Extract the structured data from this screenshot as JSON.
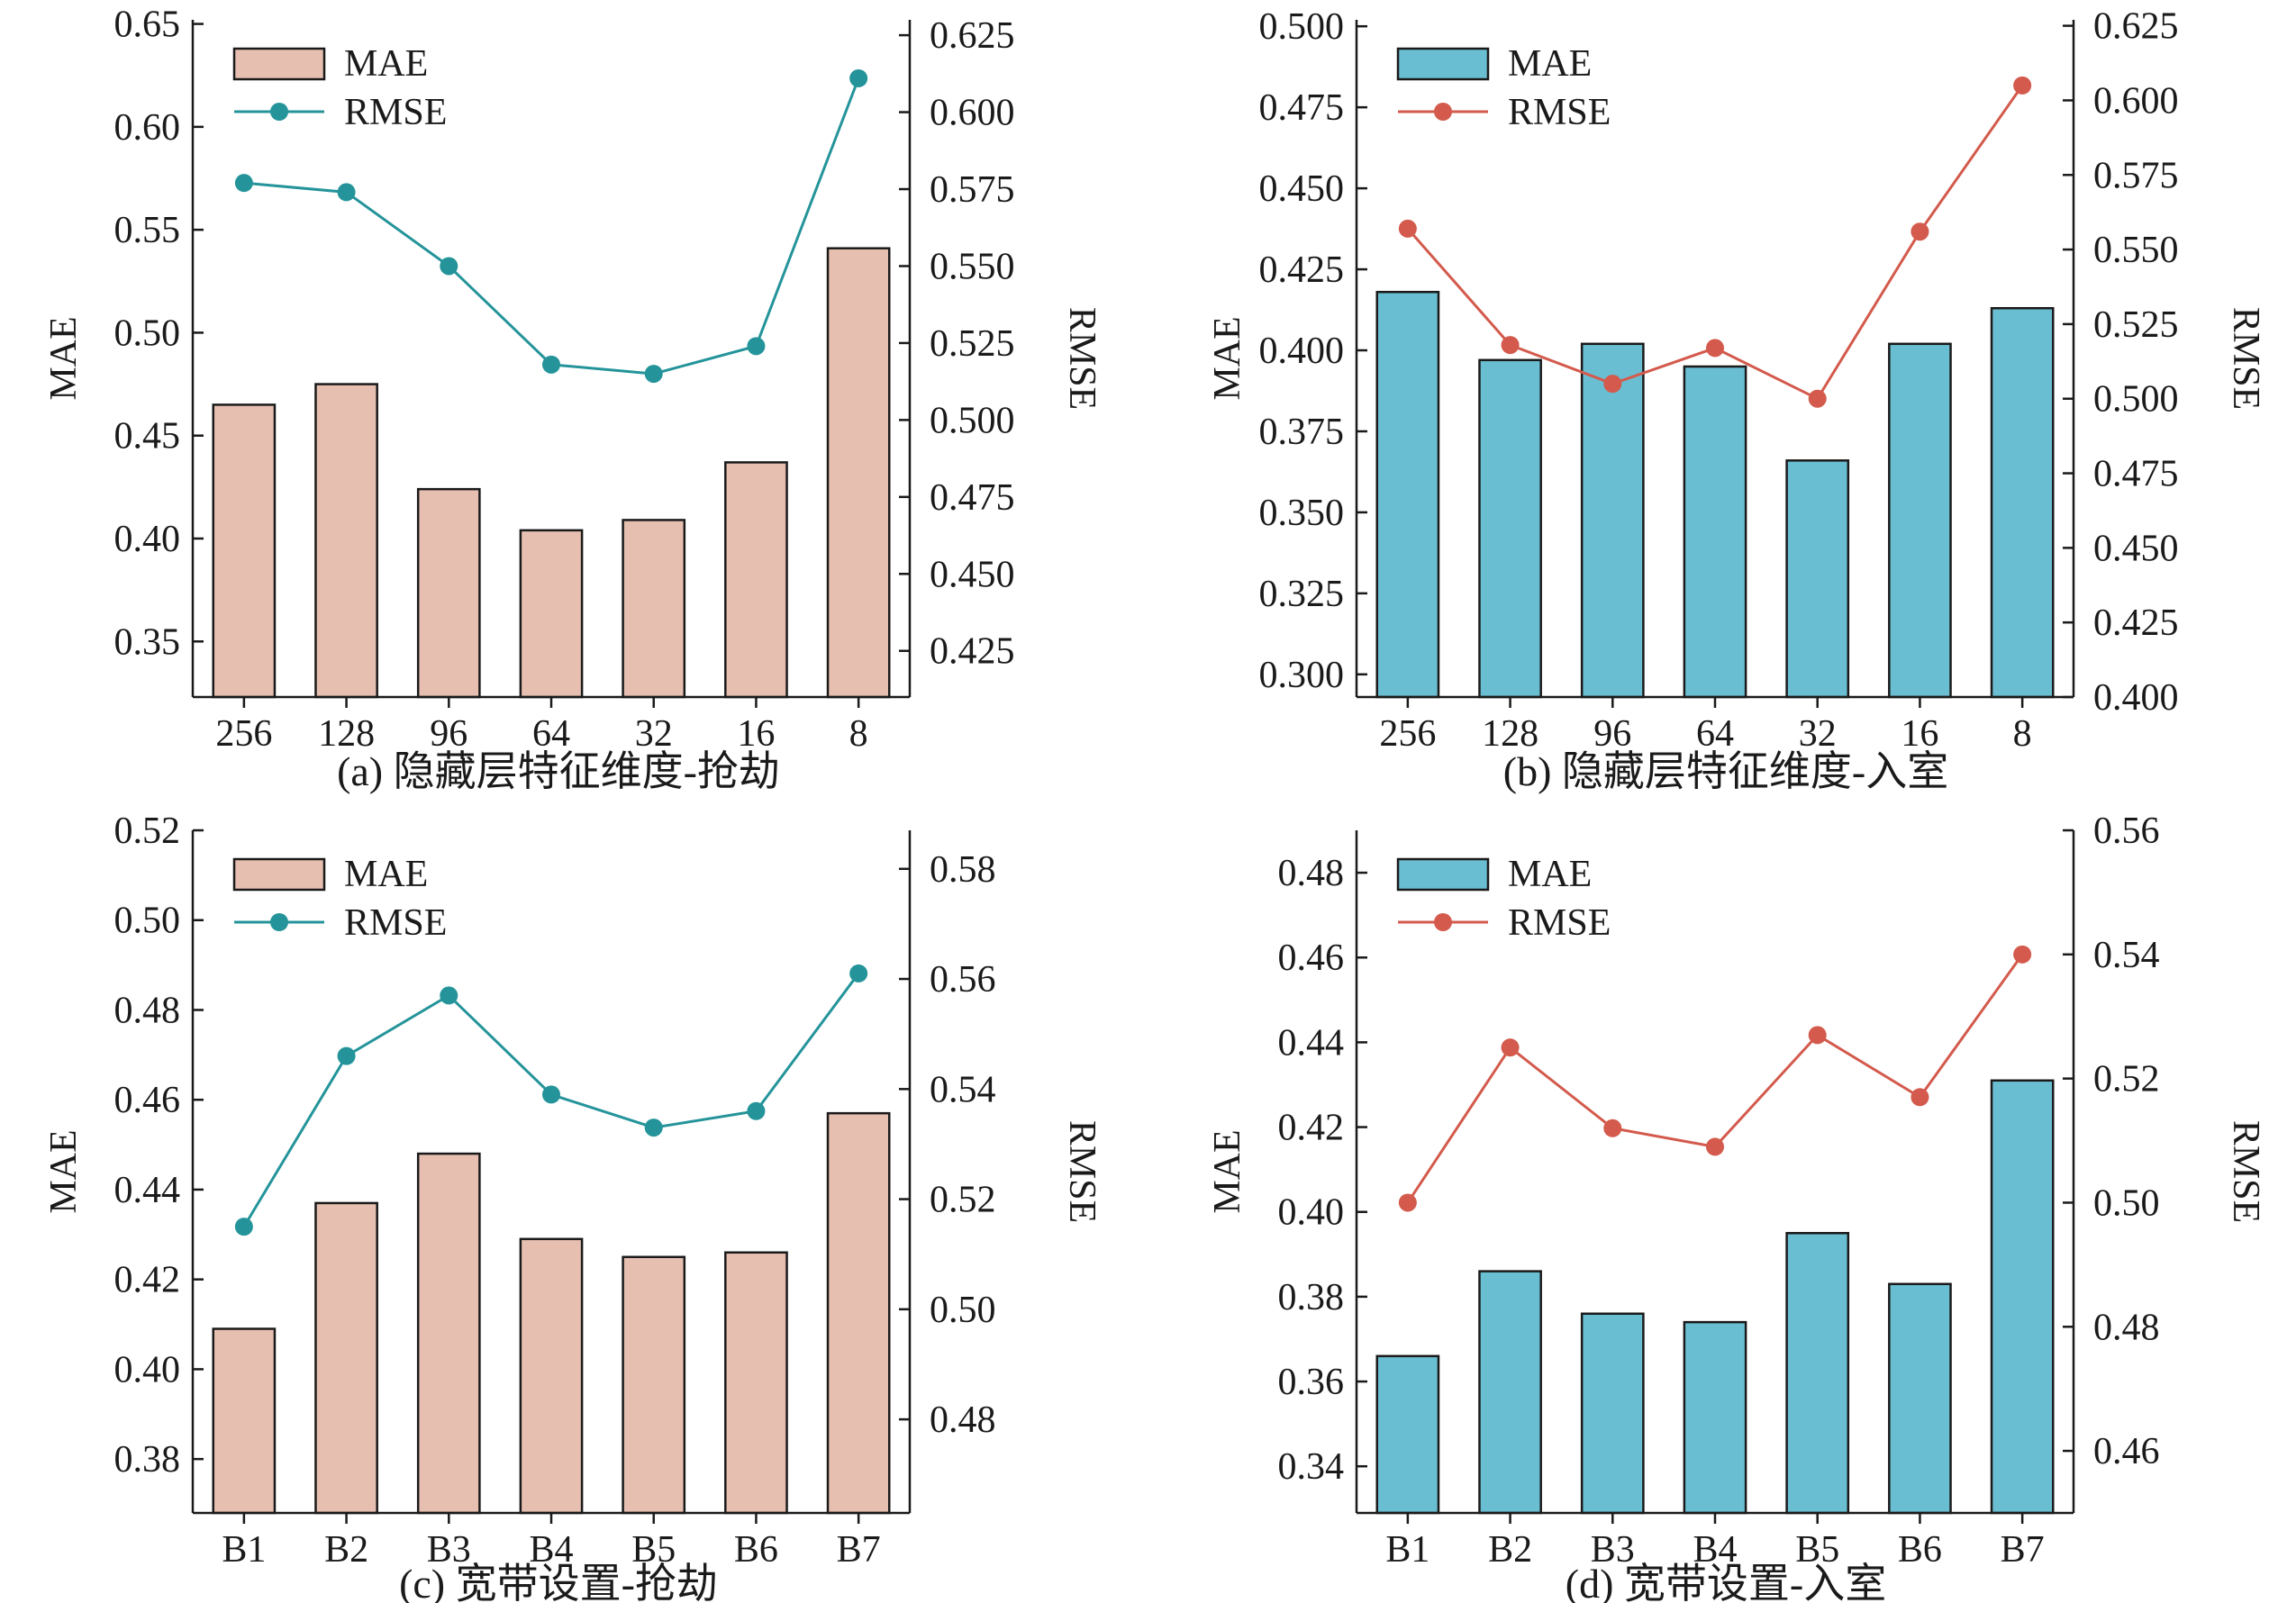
{
  "chart_data": [
    {
      "type": "bar+line",
      "caption": "(a) 隐藏层特征维度-抢劫",
      "categories": [
        "256",
        "128",
        "96",
        "64",
        "32",
        "16",
        "8"
      ],
      "series": [
        {
          "name": "MAE",
          "kind": "bar",
          "axis": "left",
          "values": [
            0.465,
            0.475,
            0.424,
            0.404,
            0.409,
            0.437,
            0.541
          ]
        },
        {
          "name": "RMSE",
          "kind": "line",
          "axis": "right",
          "values": [
            0.577,
            0.574,
            0.55,
            0.518,
            0.515,
            0.524,
            0.611
          ]
        }
      ],
      "ylabel_left": "MAE",
      "ylabel_right": "RMSE",
      "ylim_left": [
        0.323,
        0.652
      ],
      "yticks_left": [
        "0.35",
        "0.40",
        "0.45",
        "0.50",
        "0.55",
        "0.60",
        "0.65"
      ],
      "ylim_right": [
        0.41,
        0.63
      ],
      "yticks_right": [
        "0.425",
        "0.450",
        "0.475",
        "0.500",
        "0.525",
        "0.550",
        "0.575",
        "0.600",
        "0.625"
      ],
      "colors": {
        "bar": "#e6bfb1",
        "line": "#24949a"
      },
      "legend_position": "top-left"
    },
    {
      "type": "bar+line",
      "caption": "(b) 隐藏层特征维度-入室",
      "categories": [
        "256",
        "128",
        "96",
        "64",
        "32",
        "16",
        "8"
      ],
      "series": [
        {
          "name": "MAE",
          "kind": "bar",
          "axis": "left",
          "values": [
            0.418,
            0.397,
            0.402,
            0.395,
            0.366,
            0.402,
            0.413
          ]
        },
        {
          "name": "RMSE",
          "kind": "line",
          "axis": "right",
          "values": [
            0.557,
            0.518,
            0.505,
            0.517,
            0.5,
            0.556,
            0.605
          ]
        }
      ],
      "ylabel_left": "MAE",
      "ylabel_right": "RMSE",
      "ylim_left": [
        0.293,
        0.502
      ],
      "yticks_left": [
        "0.300",
        "0.325",
        "0.350",
        "0.375",
        "0.400",
        "0.425",
        "0.450",
        "0.475",
        "0.500"
      ],
      "ylim_right": [
        0.4,
        0.627
      ],
      "yticks_right": [
        "0.400",
        "0.425",
        "0.450",
        "0.475",
        "0.500",
        "0.525",
        "0.550",
        "0.575",
        "0.600",
        "0.625"
      ],
      "colors": {
        "bar": "#6abed2",
        "line": "#d35a4c"
      },
      "legend_position": "top-left"
    },
    {
      "type": "bar+line",
      "caption": "(c) 宽带设置-抢劫",
      "categories": [
        "B1",
        "B2",
        "B3",
        "B4",
        "B5",
        "B6",
        "B7"
      ],
      "series": [
        {
          "name": "MAE",
          "kind": "bar",
          "axis": "left",
          "values": [
            0.409,
            0.437,
            0.448,
            0.429,
            0.425,
            0.426,
            0.457
          ]
        },
        {
          "name": "RMSE",
          "kind": "line",
          "axis": "right",
          "values": [
            0.515,
            0.546,
            0.557,
            0.539,
            0.533,
            0.536,
            0.561
          ]
        }
      ],
      "ylabel_left": "MAE",
      "ylabel_right": "RMSE",
      "ylim_left": [
        0.368,
        0.52
      ],
      "yticks_left": [
        "0.38",
        "0.40",
        "0.42",
        "0.44",
        "0.46",
        "0.48",
        "0.50",
        "0.52"
      ],
      "ylim_right": [
        0.463,
        0.587
      ],
      "yticks_right": [
        "0.48",
        "0.50",
        "0.52",
        "0.54",
        "0.56",
        "0.58"
      ],
      "colors": {
        "bar": "#e6bfb1",
        "line": "#24949a"
      },
      "legend_position": "top-left"
    },
    {
      "type": "bar+line",
      "caption": "(d) 宽带设置-入室",
      "categories": [
        "B1",
        "B2",
        "B3",
        "B4",
        "B5",
        "B6",
        "B7"
      ],
      "series": [
        {
          "name": "MAE",
          "kind": "bar",
          "axis": "left",
          "values": [
            0.366,
            0.386,
            0.376,
            0.374,
            0.395,
            0.383,
            0.431
          ]
        },
        {
          "name": "RMSE",
          "kind": "line",
          "axis": "right",
          "values": [
            0.5,
            0.525,
            0.512,
            0.509,
            0.527,
            0.517,
            0.54
          ]
        }
      ],
      "ylabel_left": "MAE",
      "ylabel_right": "RMSE",
      "ylim_left": [
        0.329,
        0.49
      ],
      "yticks_left": [
        "0.34",
        "0.36",
        "0.38",
        "0.40",
        "0.42",
        "0.44",
        "0.46",
        "0.48"
      ],
      "ylim_right": [
        0.45,
        0.56
      ],
      "yticks_right": [
        "0.46",
        "0.48",
        "0.50",
        "0.52",
        "0.54",
        "0.56"
      ],
      "colors": {
        "bar": "#6abed2",
        "line": "#d35a4c"
      },
      "legend_position": "top-left"
    }
  ]
}
